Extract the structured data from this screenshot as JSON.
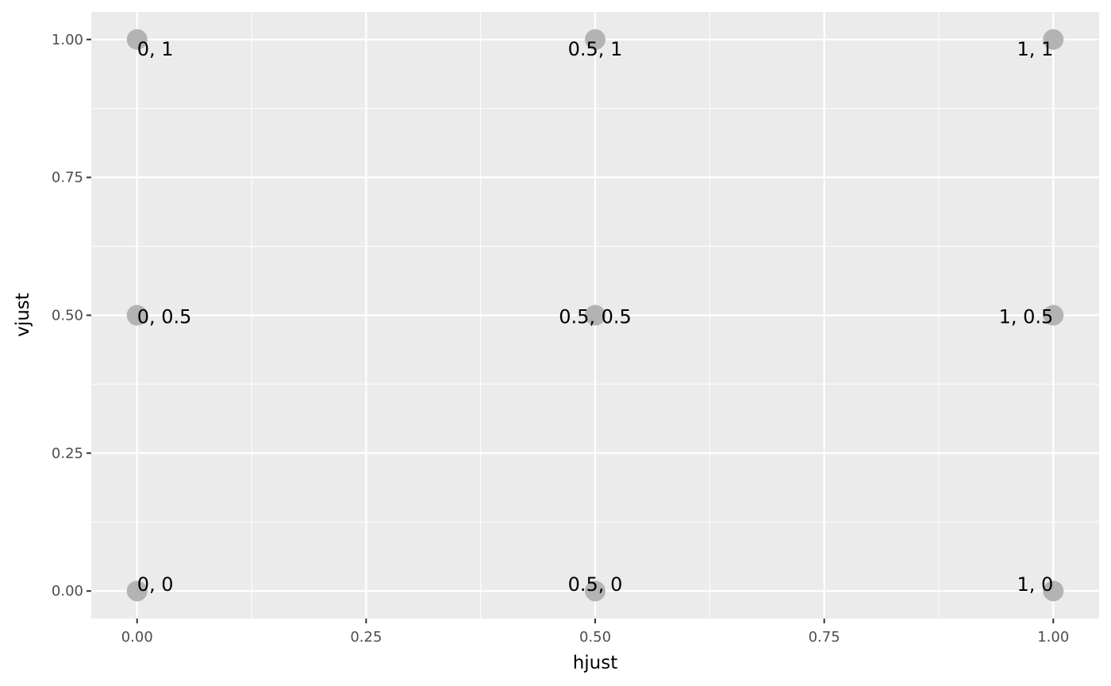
{
  "chart_data": {
    "type": "scatter",
    "x_label": "hjust",
    "y_label": "vjust",
    "x": [
      0,
      0.5,
      1,
      0,
      0.5,
      1,
      0,
      0.5,
      1
    ],
    "y": [
      0,
      0,
      0,
      0.5,
      0.5,
      0.5,
      1,
      1,
      1
    ],
    "labels": [
      "0, 0",
      "0.5, 0",
      "1, 0",
      "0, 0.5",
      "0.5, 0.5",
      "1, 0.5",
      "0, 1",
      "0.5, 1",
      "1, 1"
    ],
    "color": "#b3b3b3",
    "xlim": [
      -0.05,
      1.05
    ],
    "ylim": [
      -0.05,
      1.05
    ],
    "xticks": [
      {
        "value": 0,
        "label": "0.00"
      },
      {
        "value": 0.25,
        "label": "0.25"
      },
      {
        "value": 0.5,
        "label": "0.50"
      },
      {
        "value": 0.75,
        "label": "0.75"
      },
      {
        "value": 1,
        "label": "1.00"
      }
    ],
    "yticks": [
      {
        "value": 0,
        "label": "0.00"
      },
      {
        "value": 0.25,
        "label": "0.25"
      },
      {
        "value": 0.5,
        "label": "0.50"
      },
      {
        "value": 0.75,
        "label": "0.75"
      },
      {
        "value": 1,
        "label": "1.00"
      }
    ],
    "grid": true
  }
}
